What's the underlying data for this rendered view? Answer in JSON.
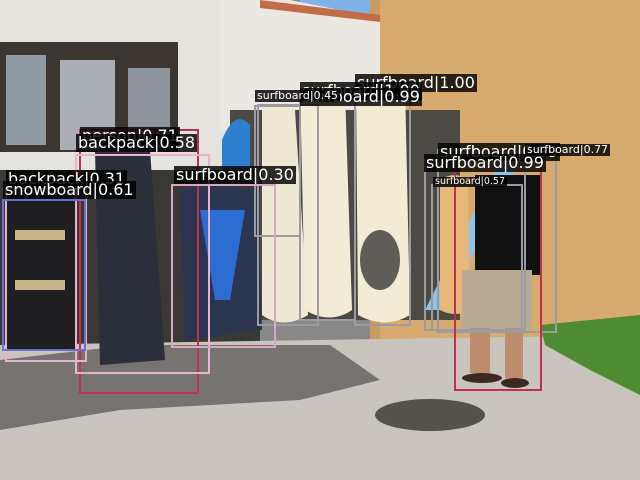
{
  "scene": {
    "description_colors": {
      "wall_left": "#e7e6e1",
      "wall_right": "#d9ad73",
      "sky": "#7fb2e6",
      "pavement": "#cbc7c0",
      "shadow": "#6f6c68",
      "grass": "#4d8a2e"
    }
  },
  "detections": [
    {
      "id": "d1",
      "label": "surfboard|1.00",
      "color": "#9b9ba3"
    },
    {
      "id": "d2",
      "label": "surfboard|1.00",
      "color": "#9b9ba3"
    },
    {
      "id": "d3",
      "label": "surfboard|0.99",
      "color": "#9b9ba3"
    },
    {
      "id": "d4",
      "label": "surfboard|0.45",
      "color": "#9b9ba3"
    },
    {
      "id": "d5",
      "label": "person|0.71",
      "color": "#c0304e"
    },
    {
      "id": "d6",
      "label": "backpack|0.58",
      "color": "#e6b4d2"
    },
    {
      "id": "d7",
      "label": "surfboard|0.30",
      "color": "#d6a8c6"
    },
    {
      "id": "d8",
      "label": "backpack|0.31",
      "color": "#e6b4d2"
    },
    {
      "id": "d9",
      "label": "snowboard|0.61",
      "color": "#6b6fd0"
    },
    {
      "id": "d10",
      "label": "surfboard|0.99",
      "color": "#9b9ba3"
    },
    {
      "id": "d11",
      "label": "surfboard|0.77",
      "color": "#9b9ba3"
    },
    {
      "id": "d12",
      "label": "surfboard|0.57",
      "color": "#9b9ba3"
    },
    {
      "id": "d13",
      "label": "surfboard|0.99",
      "color": "#9b9ba3"
    }
  ]
}
